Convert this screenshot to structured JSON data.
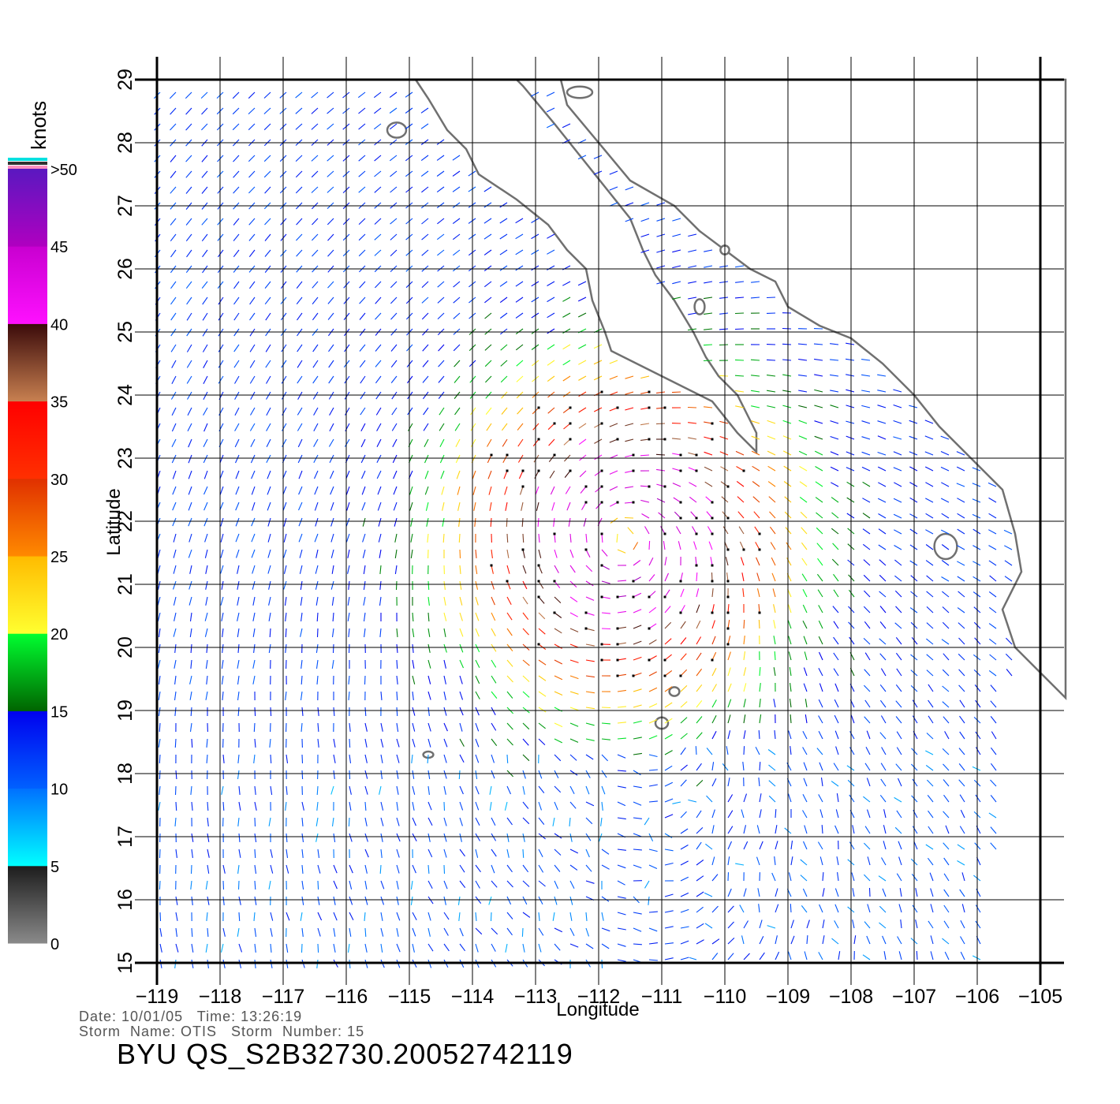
{
  "chart_data": {
    "type": "map",
    "xlabel": "Longitude",
    "ylabel": "Latitude",
    "x_ticks": [
      -119,
      -118,
      -117,
      -116,
      -115,
      -114,
      -113,
      -112,
      -111,
      -110,
      -109,
      -108,
      -107,
      -106,
      -105
    ],
    "x_tick_labels": [
      "−119",
      "−118",
      "−117",
      "−116",
      "−115",
      "−114",
      "−113",
      "−112",
      "−111",
      "−110",
      "−109",
      "−108",
      "−107",
      "−106",
      "−105"
    ],
    "y_ticks": [
      15,
      16,
      17,
      18,
      19,
      20,
      21,
      22,
      23,
      24,
      25,
      26,
      27,
      28,
      29
    ],
    "y_tick_labels": [
      "15",
      "16",
      "17",
      "18",
      "19",
      "20",
      "21",
      "22",
      "23",
      "24",
      "25",
      "26",
      "27",
      "28",
      "29"
    ],
    "xlim": [
      -119,
      -104.6
    ],
    "ylim": [
      15,
      29
    ],
    "grid": true,
    "storm_center": {
      "lon": -111.6,
      "lat": 21.8
    },
    "colorbar": {
      "title": "knots",
      "tick_labels": [
        "0",
        "5",
        "10",
        "15",
        "20",
        "25",
        "30",
        "35",
        "40",
        "45",
        ">50"
      ],
      "bands": [
        {
          "range": [
            0,
            5
          ],
          "from": "#8a8a8a",
          "to": "#1c1c1c"
        },
        {
          "range": [
            5,
            10
          ],
          "from": "#00ffff",
          "to": "#0070ff"
        },
        {
          "range": [
            10,
            15
          ],
          "from": "#0060ff",
          "to": "#0000ee"
        },
        {
          "range": [
            15,
            20
          ],
          "from": "#006400",
          "to": "#00ff30"
        },
        {
          "range": [
            20,
            25
          ],
          "from": "#ffff30",
          "to": "#ffbb00"
        },
        {
          "range": [
            25,
            30
          ],
          "from": "#ff8a00",
          "to": "#e03000"
        },
        {
          "range": [
            30,
            35
          ],
          "from": "#ff3000",
          "to": "#ff0000"
        },
        {
          "range": [
            35,
            40
          ],
          "from": "#c88050",
          "to": "#3a0a0a"
        },
        {
          "range": [
            40,
            45
          ],
          "from": "#ff10ff",
          "to": "#c800d0"
        },
        {
          "range": [
            45,
            50
          ],
          "from": "#b000c0",
          "to": "#5a18c0"
        }
      ],
      "cap_colors": [
        "#00e0e0",
        "#303030",
        "#ff90c0"
      ]
    },
    "colors": {
      "vectors_outline": "#666666",
      "grid": "#000000",
      "coastline": "#707070"
    }
  },
  "footer": {
    "date_line": "Date: 10/01/05   Time: 13:26:19",
    "storm_line": "Storm  Name: OTIS   Storm  Number: 15",
    "file_id": "BYU  QS_S2B32730.20052742119"
  }
}
